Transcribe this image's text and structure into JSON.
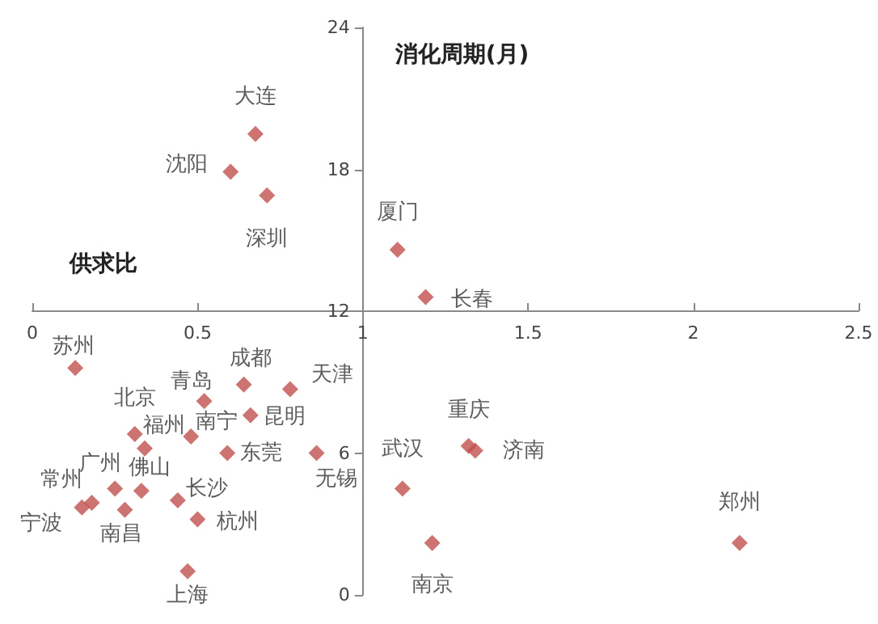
{
  "chart_data": {
    "type": "scatter",
    "xlabel": "供求比",
    "ylabel": "消化周期(月)",
    "xlim": [
      0,
      2.5
    ],
    "xticks": [
      0,
      0.5,
      1,
      1.5,
      2,
      2.5
    ],
    "ylim": [
      0,
      24
    ],
    "yticks": [
      0,
      6,
      12,
      18,
      24
    ],
    "grid": false,
    "marker": "diamond",
    "series": [
      {
        "color": "#c0504d",
        "x": [
          0.675,
          0.6,
          0.71,
          1.105,
          1.19,
          0.13,
          0.64,
          0.78,
          0.52,
          0.66,
          0.31,
          0.34,
          0.48,
          0.59,
          0.86,
          0.25,
          0.33,
          0.18,
          0.15,
          0.28,
          0.44,
          0.5,
          0.47,
          1.32,
          1.34,
          1.12,
          1.21,
          2.14
        ],
        "values": [
          19.5,
          17.9,
          16.9,
          14.6,
          12.6,
          9.6,
          8.9,
          8.7,
          8.2,
          7.6,
          6.8,
          6.2,
          6.7,
          6.0,
          6.0,
          4.5,
          4.4,
          3.9,
          3.7,
          3.6,
          4.0,
          3.2,
          1.0,
          6.3,
          6.1,
          4.5,
          2.2,
          2.2
        ]
      }
    ],
    "annotations": [
      {
        "text": "大连",
        "x": 0.675,
        "y": 19.5
      },
      {
        "text": "沈阳",
        "x": 0.6,
        "y": 17.9
      },
      {
        "text": "深圳",
        "x": 0.71,
        "y": 16.9
      },
      {
        "text": "厦门",
        "x": 1.105,
        "y": 14.6
      },
      {
        "text": "长春",
        "x": 1.19,
        "y": 12.6
      },
      {
        "text": "苏州",
        "x": 0.13,
        "y": 9.6
      },
      {
        "text": "成都",
        "x": 0.64,
        "y": 8.9
      },
      {
        "text": "天津",
        "x": 0.78,
        "y": 8.7
      },
      {
        "text": "青岛",
        "x": 0.52,
        "y": 8.2
      },
      {
        "text": "昆明",
        "x": 0.66,
        "y": 7.6
      },
      {
        "text": "北京",
        "x": 0.31,
        "y": 6.8
      },
      {
        "text": "福州",
        "x": 0.34,
        "y": 6.2
      },
      {
        "text": "南宁",
        "x": 0.48,
        "y": 6.7
      },
      {
        "text": "东莞",
        "x": 0.59,
        "y": 6.0
      },
      {
        "text": "无锡",
        "x": 0.86,
        "y": 6.0
      },
      {
        "text": "广州",
        "x": 0.25,
        "y": 4.5
      },
      {
        "text": "佛山",
        "x": 0.33,
        "y": 4.4
      },
      {
        "text": "常州",
        "x": 0.18,
        "y": 3.9
      },
      {
        "text": "宁波",
        "x": 0.15,
        "y": 3.7
      },
      {
        "text": "南昌",
        "x": 0.28,
        "y": 3.6
      },
      {
        "text": "长沙",
        "x": 0.44,
        "y": 4.0
      },
      {
        "text": "杭州",
        "x": 0.5,
        "y": 3.2
      },
      {
        "text": "上海",
        "x": 0.47,
        "y": 1.0
      },
      {
        "text": "重庆",
        "x": 1.32,
        "y": 6.3
      },
      {
        "text": "济南",
        "x": 1.34,
        "y": 6.1
      },
      {
        "text": "武汉",
        "x": 1.12,
        "y": 4.5
      },
      {
        "text": "南京",
        "x": 1.21,
        "y": 2.2
      },
      {
        "text": "郑州",
        "x": 2.14,
        "y": 2.2
      }
    ]
  }
}
